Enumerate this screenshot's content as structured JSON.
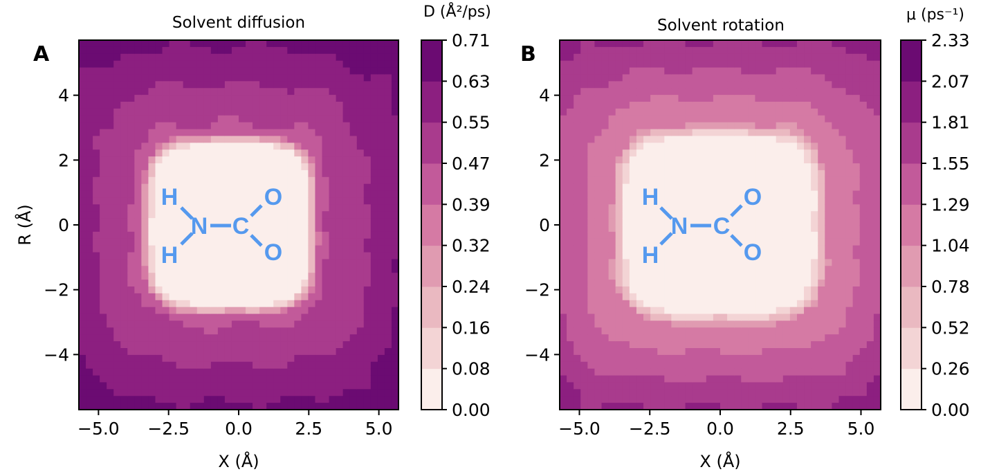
{
  "chart_data": [
    {
      "type": "heatmap",
      "panel_letter": "A",
      "title": "Solvent diffusion",
      "xlabel": "X (Å)",
      "ylabel": "R (Å)",
      "xlim": [
        -5.7,
        5.7
      ],
      "ylim": [
        -5.7,
        5.7
      ],
      "x_ticks": [
        -5.0,
        -2.5,
        0.0,
        2.5,
        5.0
      ],
      "x_tick_labels": [
        "−5.0",
        "−2.5",
        "0.0",
        "2.5",
        "5.0"
      ],
      "y_ticks": [
        4,
        2,
        0,
        -2,
        -4
      ],
      "y_tick_labels": [
        "4",
        "2",
        "0",
        "−2",
        "−4"
      ],
      "colorbar": {
        "label": "D (Å²/ps)",
        "min": 0.0,
        "max": 0.71,
        "levels": [
          0.0,
          0.08,
          0.16,
          0.24,
          0.32,
          0.39,
          0.47,
          0.55,
          0.63,
          0.71
        ],
        "tick_labels": [
          "0.00",
          "0.08",
          "0.16",
          "0.24",
          "0.32",
          "0.39",
          "0.47",
          "0.55",
          "0.63",
          "0.71"
        ]
      },
      "field": {
        "center": [
          -0.3,
          0.0
        ],
        "core_half_width": 2.7,
        "core_half_height": 2.4,
        "far_value": 0.7,
        "near_value": 0.6,
        "shoulder_value": 0.42
      },
      "molecule_labels": {
        "h_top": "H",
        "h_bottom": "H",
        "n": "N",
        "c": "C",
        "o_top": "O",
        "o_bottom": "O"
      }
    },
    {
      "type": "heatmap",
      "panel_letter": "B",
      "title": "Solvent rotation",
      "xlabel": "X (Å)",
      "ylabel": "",
      "xlim": [
        -5.7,
        5.7
      ],
      "ylim": [
        -5.7,
        5.7
      ],
      "x_ticks": [
        -5.0,
        -2.5,
        0.0,
        2.5,
        5.0
      ],
      "x_tick_labels": [
        "−5.0",
        "−2.5",
        "0.0",
        "2.5",
        "5.0"
      ],
      "y_ticks": [
        4,
        2,
        0,
        -2,
        -4
      ],
      "y_tick_labels": [
        "4",
        "2",
        "0",
        "−2",
        "−4"
      ],
      "colorbar": {
        "label": "μ (ps⁻¹)",
        "min": 0.0,
        "max": 2.33,
        "levels": [
          0.0,
          0.26,
          0.52,
          0.78,
          1.04,
          1.29,
          1.55,
          1.81,
          2.07,
          2.33
        ],
        "tick_labels": [
          "0.00",
          "0.26",
          "0.52",
          "0.78",
          "1.04",
          "1.29",
          "1.55",
          "1.81",
          "2.07",
          "2.33"
        ]
      },
      "field": {
        "center": [
          0.0,
          0.0
        ],
        "core_half_width": 3.2,
        "core_half_height": 2.6,
        "far_value": 2.05,
        "near_value": 1.75,
        "shoulder_value": 0.9
      },
      "molecule_labels": {
        "h_top": "H",
        "h_bottom": "H",
        "n": "N",
        "c": "C",
        "o_top": "O",
        "o_bottom": "O"
      }
    }
  ],
  "colors": {
    "colormap": [
      "#fbeeeb",
      "#f3d4d5",
      "#eab9c1",
      "#e09bb1",
      "#d57aa4",
      "#c25a9a",
      "#a93b8d",
      "#8c1f80",
      "#6b0b72",
      "#4d0462"
    ],
    "molecule": "#5599ee",
    "contour_line": "#7a6a6a"
  }
}
